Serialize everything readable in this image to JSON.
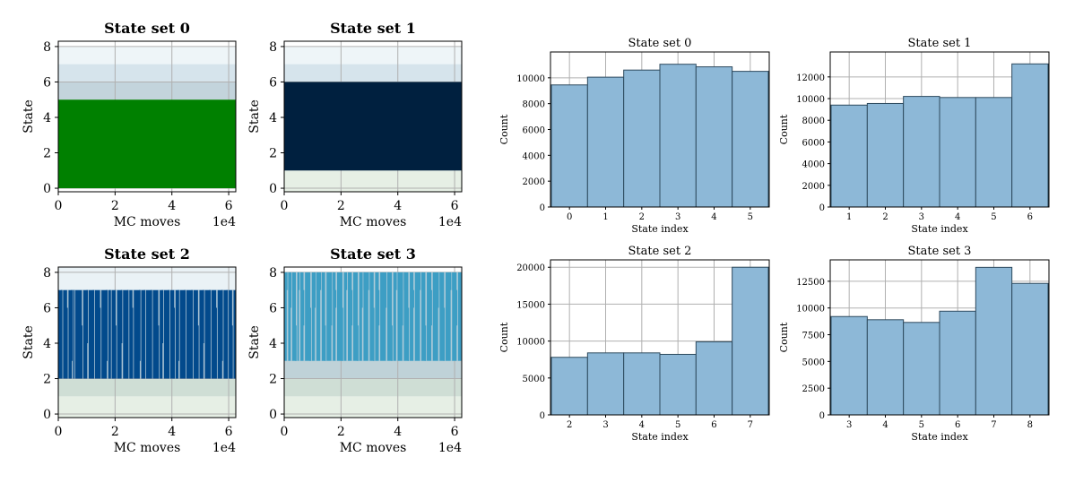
{
  "chart_data": [
    {
      "type": "trace",
      "title": "State set 0",
      "xlabel": "MC moves",
      "ylabel": "State",
      "x_offset_label": "1e4",
      "xlim": [
        0,
        6.25
      ],
      "ylim": [
        -0.2,
        8.3
      ],
      "xticks": [
        0,
        2,
        4,
        6
      ],
      "yticks": [
        0,
        2,
        4,
        6,
        8
      ],
      "grid": true,
      "line_color": "#008000",
      "band_color": "#c7dbe6",
      "bands": [
        [
          0,
          5
        ],
        [
          5,
          6
        ],
        [
          6,
          7
        ],
        [
          7,
          8
        ]
      ],
      "occupied_range": [
        0,
        5
      ],
      "spikes": []
    },
    {
      "type": "trace",
      "title": "State set 1",
      "xlabel": "MC moves",
      "ylabel": "State",
      "x_offset_label": "1e4",
      "xlim": [
        0,
        6.25
      ],
      "ylim": [
        -0.2,
        8.3
      ],
      "xticks": [
        0,
        2,
        4,
        6
      ],
      "yticks": [
        0,
        2,
        4,
        6,
        8
      ],
      "grid": true,
      "line_color": "#00203f",
      "band_color": "#c7dbe6",
      "bands": [
        [
          0,
          1
        ],
        [
          1,
          6
        ],
        [
          6,
          7
        ],
        [
          7,
          8
        ]
      ],
      "occupied_range": [
        1,
        6
      ],
      "spikes": []
    },
    {
      "type": "trace",
      "title": "State set 2",
      "xlabel": "MC moves",
      "ylabel": "State",
      "x_offset_label": "1e4",
      "xlim": [
        0,
        6.25
      ],
      "ylim": [
        -0.2,
        8.3
      ],
      "xticks": [
        0,
        2,
        4,
        6
      ],
      "yticks": [
        0,
        2,
        4,
        6,
        8
      ],
      "grid": true,
      "line_color": "#024a8c",
      "band_color": "#c7dbe6",
      "bands": [
        [
          0,
          1
        ],
        [
          1,
          2
        ],
        [
          2,
          7
        ],
        [
          7,
          8
        ]
      ],
      "occupied_range": [
        2,
        7
      ],
      "spikes": [
        [
          0.12,
          2,
          7
        ],
        [
          0.31,
          2,
          6
        ],
        [
          0.48,
          3,
          7
        ],
        [
          0.55,
          2,
          7
        ],
        [
          0.83,
          2,
          5
        ],
        [
          1.02,
          4,
          7
        ],
        [
          1.24,
          2,
          7
        ],
        [
          1.47,
          2,
          6
        ],
        [
          1.71,
          3,
          7
        ],
        [
          1.83,
          2,
          7
        ],
        [
          2.02,
          2,
          5
        ],
        [
          2.23,
          4,
          7
        ],
        [
          2.45,
          2,
          7
        ],
        [
          2.61,
          2,
          6
        ],
        [
          2.87,
          3,
          7
        ],
        [
          3.04,
          2,
          7
        ],
        [
          3.28,
          2,
          7
        ],
        [
          3.52,
          2,
          5
        ],
        [
          3.67,
          4,
          7
        ],
        [
          3.89,
          2,
          7
        ],
        [
          4.08,
          2,
          6
        ],
        [
          4.23,
          3,
          7
        ],
        [
          4.46,
          2,
          7
        ],
        [
          4.71,
          2,
          7
        ],
        [
          4.92,
          2,
          5
        ],
        [
          5.11,
          4,
          7
        ],
        [
          5.34,
          2,
          7
        ],
        [
          5.56,
          2,
          6
        ],
        [
          5.77,
          3,
          7
        ],
        [
          5.95,
          2,
          7
        ],
        [
          6.12,
          2,
          5
        ]
      ]
    },
    {
      "type": "trace",
      "title": "State set 3",
      "xlabel": "MC moves",
      "ylabel": "State",
      "x_offset_label": "1e4",
      "xlim": [
        0,
        6.25
      ],
      "ylim": [
        -0.2,
        8.3
      ],
      "xticks": [
        0,
        2,
        4,
        6
      ],
      "yticks": [
        0,
        2,
        4,
        6,
        8
      ],
      "grid": true,
      "line_color": "#3d9ec4",
      "band_color": "#c7dbe6",
      "bands": [
        [
          0,
          1
        ],
        [
          1,
          2
        ],
        [
          2,
          3
        ],
        [
          3,
          8
        ]
      ],
      "occupied_range": [
        3,
        8
      ],
      "spikes": [
        [
          0.09,
          7,
          8
        ],
        [
          0.23,
          6,
          8
        ],
        [
          0.41,
          3,
          5
        ],
        [
          0.52,
          7,
          8
        ],
        [
          0.68,
          5,
          7
        ],
        [
          0.92,
          3,
          6
        ],
        [
          1.08,
          6,
          8
        ],
        [
          1.27,
          7,
          8
        ],
        [
          1.44,
          3,
          5
        ],
        [
          1.66,
          5,
          8
        ],
        [
          1.81,
          6,
          7
        ],
        [
          2.05,
          3,
          6
        ],
        [
          2.19,
          7,
          8
        ],
        [
          2.38,
          5,
          7
        ],
        [
          2.59,
          3,
          5
        ],
        [
          2.74,
          6,
          8
        ],
        [
          2.96,
          7,
          8
        ],
        [
          3.15,
          3,
          6
        ],
        [
          3.33,
          5,
          7
        ],
        [
          3.58,
          6,
          8
        ],
        [
          3.79,
          3,
          5
        ],
        [
          3.94,
          7,
          8
        ],
        [
          4.16,
          5,
          8
        ],
        [
          4.37,
          3,
          6
        ],
        [
          4.55,
          6,
          7
        ],
        [
          4.78,
          7,
          8
        ],
        [
          4.97,
          3,
          5
        ],
        [
          5.18,
          5,
          7
        ],
        [
          5.42,
          6,
          8
        ],
        [
          5.63,
          3,
          6
        ],
        [
          5.86,
          7,
          8
        ],
        [
          6.07,
          5,
          7
        ]
      ]
    },
    {
      "type": "bar",
      "title": "State set 0",
      "xlabel": "State index",
      "ylabel": "Count",
      "categories": [
        "0",
        "1",
        "2",
        "3",
        "4",
        "5"
      ],
      "values": [
        9450,
        10050,
        10600,
        11050,
        10850,
        10500
      ],
      "ylim": [
        0,
        12000
      ],
      "yticks": [
        0,
        2000,
        4000,
        6000,
        8000,
        10000
      ],
      "grid": true,
      "bar_color": "#8db8d7"
    },
    {
      "type": "bar",
      "title": "State set 1",
      "xlabel": "State index",
      "ylabel": "Count",
      "categories": [
        "1",
        "2",
        "3",
        "4",
        "5",
        "6"
      ],
      "values": [
        9400,
        9550,
        10200,
        10100,
        10100,
        13200
      ],
      "ylim": [
        0,
        14300
      ],
      "yticks": [
        0,
        2000,
        4000,
        6000,
        8000,
        10000,
        12000
      ],
      "grid": true,
      "bar_color": "#8db8d7"
    },
    {
      "type": "bar",
      "title": "State set 2",
      "xlabel": "State index",
      "ylabel": "Count",
      "categories": [
        "2",
        "3",
        "4",
        "5",
        "6",
        "7"
      ],
      "values": [
        7800,
        8400,
        8400,
        8200,
        9900,
        20000
      ],
      "ylim": [
        0,
        21000
      ],
      "yticks": [
        0,
        5000,
        10000,
        15000,
        20000
      ],
      "grid": true,
      "bar_color": "#8db8d7"
    },
    {
      "type": "bar",
      "title": "State set 3",
      "xlabel": "State index",
      "ylabel": "Count",
      "categories": [
        "3",
        "4",
        "5",
        "6",
        "7",
        "8"
      ],
      "values": [
        9200,
        8900,
        8650,
        9700,
        13800,
        12300
      ],
      "ylim": [
        0,
        14500
      ],
      "yticks": [
        0,
        2500,
        5000,
        7500,
        10000,
        12500
      ],
      "grid": true,
      "bar_color": "#8db8d7"
    }
  ]
}
